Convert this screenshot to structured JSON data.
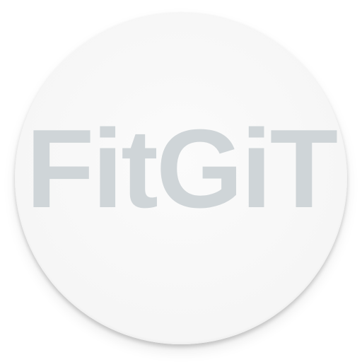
{
  "app_icon": {
    "name": "FitGiT",
    "colors": {
      "circle": "#f7f7f7",
      "text": "#cfd5d8",
      "background": "#ffffff"
    }
  }
}
